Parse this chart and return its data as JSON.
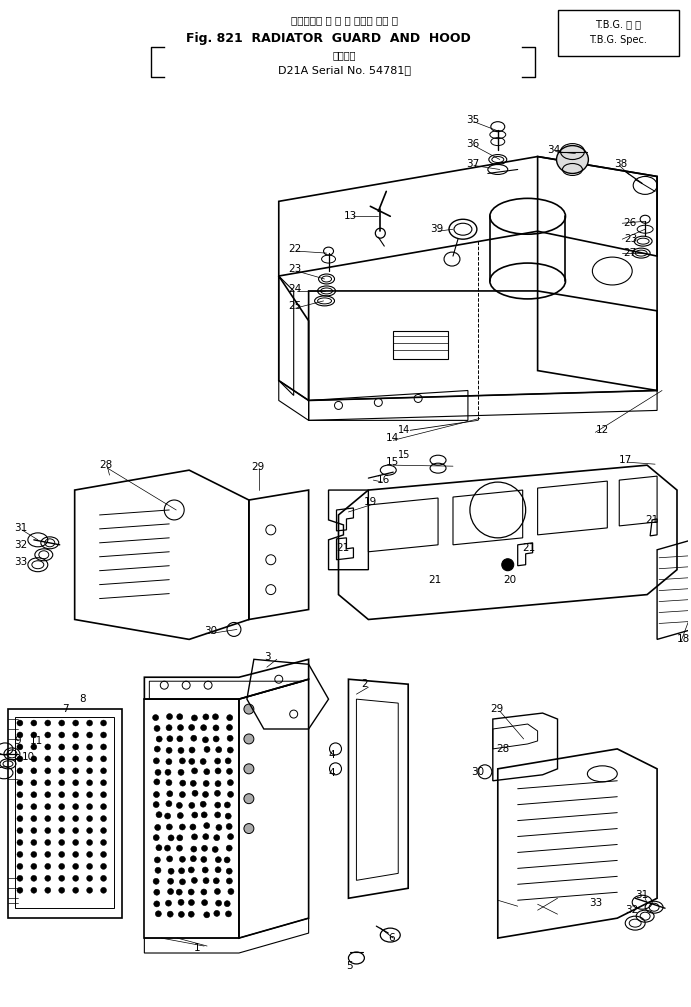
{
  "title_line1": "ラジエータ ガ ー ド および フー ド",
  "title_tbg1": "T.B.G. 仕 様",
  "title_line2": "Fig. 821  RADIATOR  GUARD  AND  HOOD",
  "title_tbg2": "T.B.G. Spec.",
  "title_line3": "適用号機",
  "title_line4": "D21A Serial No. 54781～",
  "bg_color": "#ffffff",
  "lc": "#000000",
  "lw": 1.0,
  "fig_w": 6.91,
  "fig_h": 10.07,
  "dpi": 100
}
